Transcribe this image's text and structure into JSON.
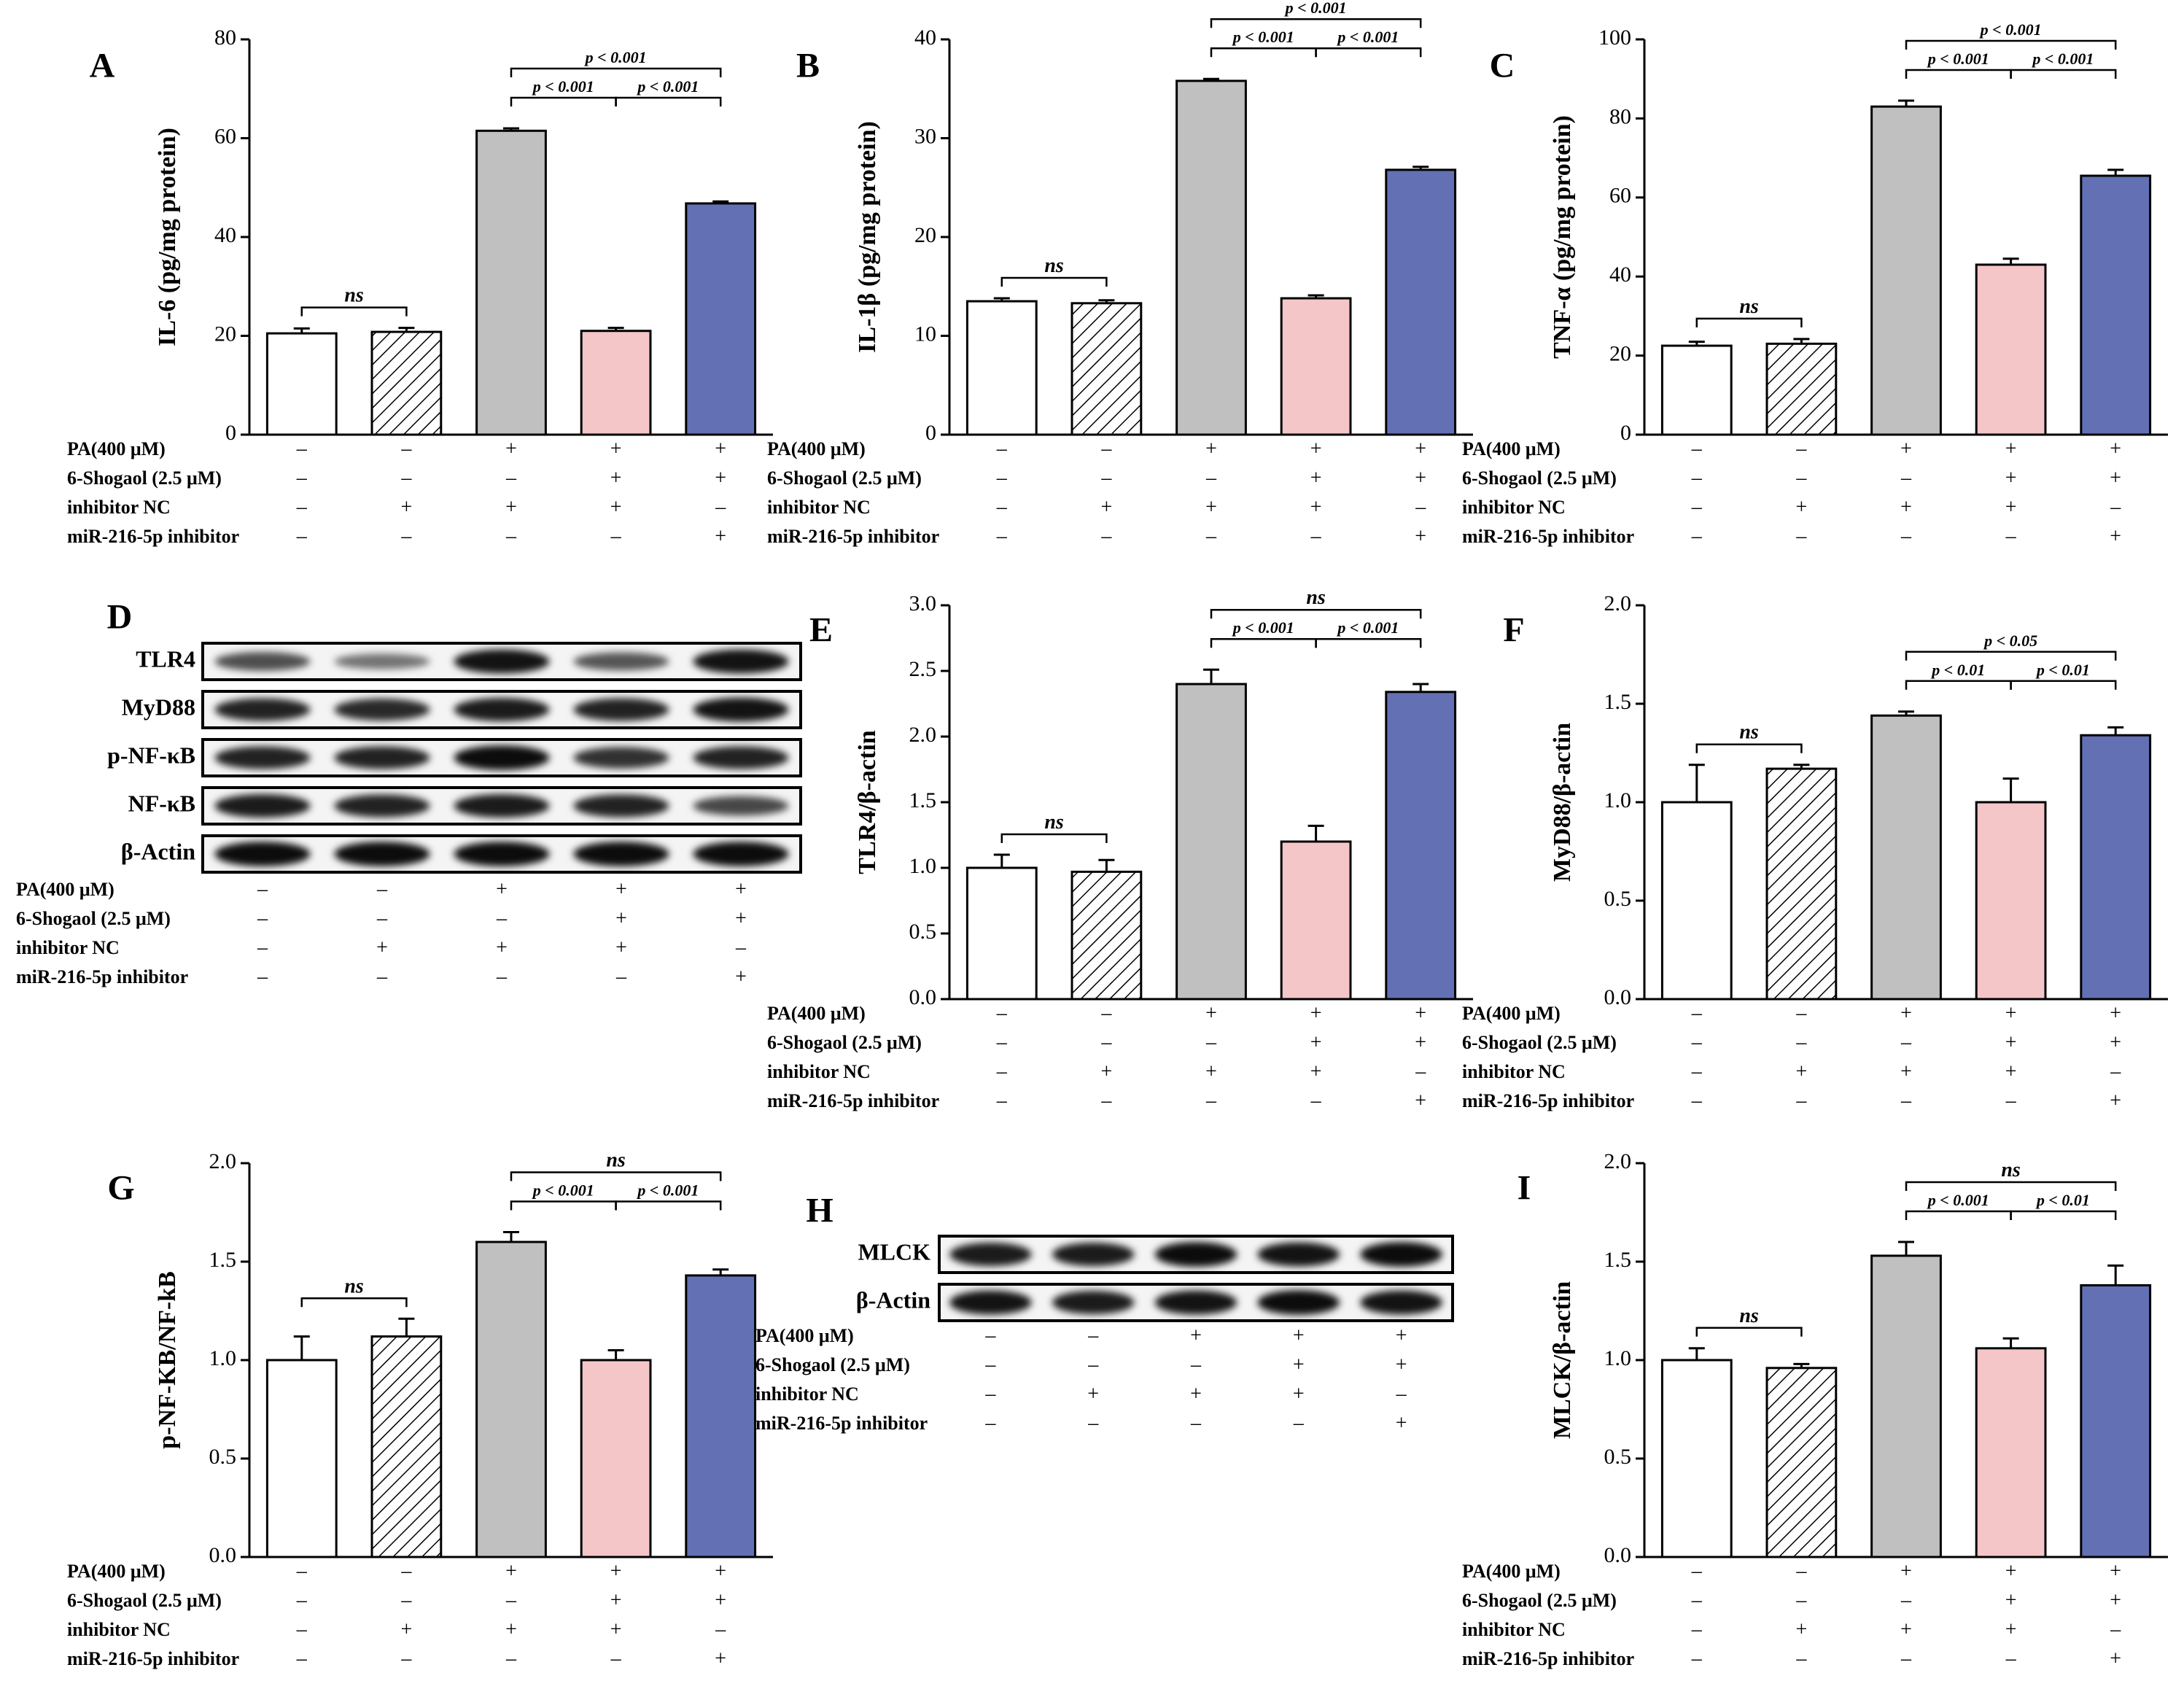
{
  "colors": {
    "bar_control": "#ffffff",
    "bar_nc": "#ffffff",
    "bar_pa": "#c0c0c0",
    "bar_shogaol": "#f4c6c8",
    "bar_inhibitor": "#6370b4",
    "outline": "#000000"
  },
  "conditions": {
    "row_labels": [
      "PA(400 μM)",
      "6-Shogaol (2.5 μM)",
      "inhibitor NC",
      "miR-216-5p inhibitor"
    ],
    "signs": [
      [
        "–",
        "–",
        "+",
        "+",
        "+"
      ],
      [
        "–",
        "–",
        "–",
        "+",
        "+"
      ],
      [
        "–",
        "+",
        "+",
        "+",
        "–"
      ],
      [
        "–",
        "–",
        "–",
        "–",
        "+"
      ]
    ]
  },
  "chart_data": [
    {
      "id": "A",
      "type": "bar",
      "letter": "A",
      "ylabel": "IL-6 (pg/mg protein)",
      "ylim": [
        0,
        80
      ],
      "yticks": [
        "0",
        "20",
        "40",
        "60",
        "80"
      ],
      "values": [
        20.5,
        20.8,
        61.5,
        21.0,
        46.8
      ],
      "errors": [
        1.0,
        0.8,
        0.5,
        0.6,
        0.4
      ],
      "significance": [
        {
          "label": "ns",
          "from": 0,
          "to": 1,
          "level": 0
        },
        {
          "label": "p < 0.001",
          "from": 2,
          "to": 3,
          "level": 0
        },
        {
          "label": "p < 0.001",
          "from": 3,
          "to": 4,
          "level": 0
        },
        {
          "label": "p < 0.001",
          "from": 2,
          "to": 4,
          "level": 1
        }
      ]
    },
    {
      "id": "B",
      "type": "bar",
      "letter": "B",
      "ylabel": "IL-1β (pg/mg protein)",
      "ylim": [
        0,
        40
      ],
      "yticks": [
        "0",
        "10",
        "20",
        "30",
        "40"
      ],
      "values": [
        13.5,
        13.3,
        35.8,
        13.8,
        26.8
      ],
      "errors": [
        0.3,
        0.3,
        0.2,
        0.3,
        0.3
      ],
      "significance": [
        {
          "label": "ns",
          "from": 0,
          "to": 1,
          "level": 0
        },
        {
          "label": "p < 0.001",
          "from": 2,
          "to": 3,
          "level": 0
        },
        {
          "label": "p < 0.001",
          "from": 3,
          "to": 4,
          "level": 0
        },
        {
          "label": "p < 0.001",
          "from": 2,
          "to": 4,
          "level": 1
        }
      ]
    },
    {
      "id": "C",
      "type": "bar",
      "letter": "C",
      "ylabel": "TNF-α (pg/mg protein)",
      "ylim": [
        0,
        100
      ],
      "yticks": [
        "0",
        "20",
        "40",
        "60",
        "80",
        "100"
      ],
      "values": [
        22.5,
        23.0,
        83.0,
        43.0,
        65.5
      ],
      "errors": [
        1.0,
        1.2,
        1.5,
        1.5,
        1.5
      ],
      "significance": [
        {
          "label": "ns",
          "from": 0,
          "to": 1,
          "level": 0
        },
        {
          "label": "p < 0.001",
          "from": 2,
          "to": 3,
          "level": 0
        },
        {
          "label": "p < 0.001",
          "from": 3,
          "to": 4,
          "level": 0
        },
        {
          "label": "p < 0.001",
          "from": 2,
          "to": 4,
          "level": 1
        }
      ]
    },
    {
      "id": "E",
      "type": "bar",
      "letter": "E",
      "ylabel": "TLR4/β-actin",
      "ylim": [
        0,
        3
      ],
      "yticks": [
        "0.0",
        "0.5",
        "1.0",
        "1.5",
        "2.0",
        "2.5",
        "3.0"
      ],
      "values": [
        1.0,
        0.97,
        2.4,
        1.2,
        2.34
      ],
      "errors": [
        0.1,
        0.09,
        0.11,
        0.12,
        0.06
      ],
      "significance": [
        {
          "label": "ns",
          "from": 0,
          "to": 1,
          "level": 0
        },
        {
          "label": "p < 0.001",
          "from": 2,
          "to": 3,
          "level": 0
        },
        {
          "label": "p < 0.001",
          "from": 3,
          "to": 4,
          "level": 0
        },
        {
          "label": "ns",
          "from": 2,
          "to": 4,
          "level": 1
        }
      ]
    },
    {
      "id": "F",
      "type": "bar",
      "letter": "F",
      "ylabel": "MyD88/β-actin",
      "ylim": [
        0,
        2
      ],
      "yticks": [
        "0.0",
        "0.5",
        "1.0",
        "1.5",
        "2.0"
      ],
      "values": [
        1.0,
        1.17,
        1.44,
        1.0,
        1.34
      ],
      "errors": [
        0.19,
        0.02,
        0.02,
        0.12,
        0.04
      ],
      "significance": [
        {
          "label": "ns",
          "from": 0,
          "to": 1,
          "level": 0
        },
        {
          "label": "p < 0.01",
          "from": 2,
          "to": 3,
          "level": 0
        },
        {
          "label": "p < 0.01",
          "from": 3,
          "to": 4,
          "level": 0
        },
        {
          "label": "p < 0.05",
          "from": 2,
          "to": 4,
          "level": 1
        }
      ]
    },
    {
      "id": "G",
      "type": "bar",
      "letter": "G",
      "ylabel": "p-NF-KB/NF-kB",
      "ylim": [
        0,
        2
      ],
      "yticks": [
        "0.0",
        "0.5",
        "1.0",
        "1.5",
        "2.0"
      ],
      "values": [
        1.0,
        1.12,
        1.6,
        1.0,
        1.43
      ],
      "errors": [
        0.12,
        0.09,
        0.05,
        0.05,
        0.03
      ],
      "significance": [
        {
          "label": "ns",
          "from": 0,
          "to": 1,
          "level": 0
        },
        {
          "label": "p < 0.001",
          "from": 2,
          "to": 3,
          "level": 0
        },
        {
          "label": "p < 0.001",
          "from": 3,
          "to": 4,
          "level": 0
        },
        {
          "label": "ns",
          "from": 2,
          "to": 4,
          "level": 1
        }
      ]
    },
    {
      "id": "I",
      "type": "bar",
      "letter": "I",
      "ylabel": "MLCK/β-actin",
      "ylim": [
        0,
        2
      ],
      "yticks": [
        "0.0",
        "0.5",
        "1.0",
        "1.5",
        "2.0"
      ],
      "values": [
        1.0,
        0.96,
        1.53,
        1.06,
        1.38
      ],
      "errors": [
        0.06,
        0.02,
        0.07,
        0.05,
        0.1
      ],
      "significance": [
        {
          "label": "ns",
          "from": 0,
          "to": 1,
          "level": 0
        },
        {
          "label": "p < 0.001",
          "from": 2,
          "to": 3,
          "level": 0
        },
        {
          "label": "p < 0.01",
          "from": 3,
          "to": 4,
          "level": 0
        },
        {
          "label": "ns",
          "from": 2,
          "to": 4,
          "level": 1
        }
      ]
    }
  ],
  "blots": [
    {
      "id": "D",
      "letter": "D",
      "bands": [
        {
          "label": "TLR4",
          "intensity": [
            0.55,
            0.3,
            0.95,
            0.5,
            0.95
          ]
        },
        {
          "label": "MyD88",
          "intensity": [
            0.85,
            0.8,
            0.9,
            0.85,
            0.95
          ]
        },
        {
          "label": "p-NF-κB",
          "intensity": [
            0.85,
            0.85,
            1.0,
            0.75,
            0.85
          ]
        },
        {
          "label": "NF-κB",
          "intensity": [
            0.9,
            0.85,
            0.9,
            0.85,
            0.6
          ]
        },
        {
          "label": "β-Actin",
          "intensity": [
            1.0,
            1.0,
            1.0,
            1.0,
            1.0
          ]
        }
      ]
    },
    {
      "id": "H",
      "letter": "H",
      "bands": [
        {
          "label": "MLCK",
          "intensity": [
            0.9,
            0.9,
            1.0,
            0.95,
            1.0
          ]
        },
        {
          "label": "β-Actin",
          "intensity": [
            0.95,
            0.9,
            0.95,
            1.0,
            0.95
          ]
        }
      ]
    }
  ]
}
